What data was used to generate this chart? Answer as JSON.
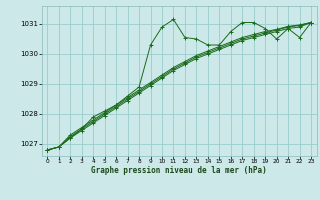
{
  "title": "Graphe pression niveau de la mer (hPa)",
  "bg_color": "#cce8e8",
  "grid_color": "#99cccc",
  "line_color": "#1a6b1a",
  "xlim": [
    -0.5,
    23.5
  ],
  "ylim": [
    1026.6,
    1031.6
  ],
  "yticks": [
    1027,
    1028,
    1029,
    1030,
    1031
  ],
  "xticks": [
    0,
    1,
    2,
    3,
    4,
    5,
    6,
    7,
    8,
    9,
    10,
    11,
    12,
    13,
    14,
    15,
    16,
    17,
    18,
    19,
    20,
    21,
    22,
    23
  ],
  "series": [
    {
      "x": [
        0,
        1,
        2,
        3,
        4,
        5,
        6,
        7,
        8,
        9,
        10,
        11,
        12,
        13,
        14,
        15,
        16,
        17,
        18,
        19,
        20,
        21,
        22,
        23
      ],
      "y": [
        1026.8,
        1026.9,
        1027.2,
        1027.5,
        1027.9,
        1028.1,
        1028.3,
        1028.6,
        1028.9,
        1030.3,
        1030.9,
        1031.15,
        1030.55,
        1030.5,
        1030.3,
        1030.3,
        1030.75,
        1031.05,
        1031.05,
        1030.85,
        1030.5,
        1030.85,
        1030.55,
        1031.05
      ]
    },
    {
      "x": [
        0,
        1,
        2,
        3,
        4,
        5,
        6,
        7,
        8,
        9,
        10,
        11,
        12,
        13,
        14,
        15,
        16,
        17,
        18,
        19,
        20,
        21,
        22,
        23
      ],
      "y": [
        1026.8,
        1026.9,
        1027.2,
        1027.45,
        1027.7,
        1027.95,
        1028.2,
        1028.45,
        1028.7,
        1028.95,
        1029.2,
        1029.45,
        1029.65,
        1029.85,
        1030.0,
        1030.15,
        1030.3,
        1030.45,
        1030.55,
        1030.65,
        1030.75,
        1030.85,
        1030.9,
        1031.05
      ]
    },
    {
      "x": [
        0,
        1,
        2,
        3,
        4,
        5,
        6,
        7,
        8,
        9,
        10,
        11,
        12,
        13,
        14,
        15,
        16,
        17,
        18,
        19,
        20,
        21,
        22,
        23
      ],
      "y": [
        1026.8,
        1026.9,
        1027.25,
        1027.5,
        1027.75,
        1028.0,
        1028.25,
        1028.5,
        1028.75,
        1029.0,
        1029.25,
        1029.5,
        1029.7,
        1029.9,
        1030.05,
        1030.2,
        1030.35,
        1030.5,
        1030.6,
        1030.7,
        1030.8,
        1030.9,
        1030.95,
        1031.05
      ]
    },
    {
      "x": [
        0,
        1,
        2,
        3,
        4,
        5,
        6,
        7,
        8,
        9,
        10,
        11,
        12,
        13,
        14,
        15,
        16,
        17,
        18,
        19,
        20,
        21,
        22,
        23
      ],
      "y": [
        1026.8,
        1026.9,
        1027.3,
        1027.55,
        1027.8,
        1028.05,
        1028.3,
        1028.55,
        1028.8,
        1029.05,
        1029.3,
        1029.55,
        1029.75,
        1029.95,
        1030.1,
        1030.25,
        1030.4,
        1030.55,
        1030.65,
        1030.75,
        1030.82,
        1030.92,
        1030.97,
        1031.05
      ]
    }
  ]
}
